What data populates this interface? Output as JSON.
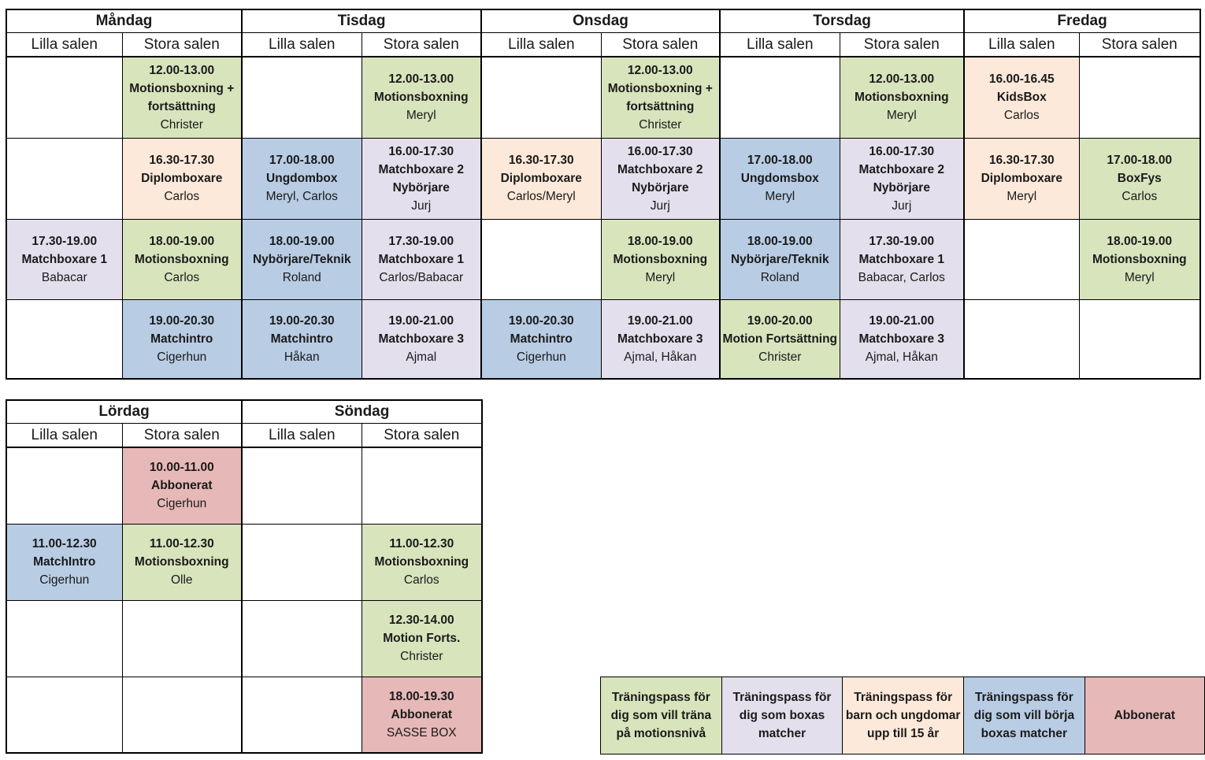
{
  "week": {
    "days": [
      "Måndag",
      "Tisdag",
      "Onsdag",
      "Torsdag",
      "Fredag"
    ],
    "halls": [
      "Lilla salen",
      "Stora salen"
    ],
    "rows": [
      [
        null,
        {
          "color": "green",
          "time": "12.00-13.00",
          "name": "Motionsboxning + fortsättning",
          "instructor": "Christer"
        },
        null,
        {
          "color": "green",
          "time": "12.00-13.00",
          "name": "Motionsboxning",
          "instructor": "Meryl"
        },
        null,
        {
          "color": "green",
          "time": "12.00-13.00",
          "name": "Motionsboxning + fortsättning",
          "instructor": "Christer"
        },
        null,
        {
          "color": "green",
          "time": "12.00-13.00",
          "name": "Motionsboxning",
          "instructor": "Meryl"
        },
        {
          "color": "peach",
          "time": "16.00-16.45",
          "name": "KidsBox",
          "instructor": "Carlos"
        },
        null
      ],
      [
        null,
        {
          "color": "peach",
          "time": "16.30-17.30",
          "name": "Diplomboxare",
          "instructor": "Carlos"
        },
        {
          "color": "blue",
          "time": "17.00-18.00",
          "name": "Ungdombox",
          "instructor": "Meryl, Carlos"
        },
        {
          "color": "purple",
          "time": "16.00-17.30",
          "name": "Matchboxare 2 Nybörjare",
          "instructor": "Jurj"
        },
        {
          "color": "peach",
          "time": "16.30-17.30",
          "name": "Diplomboxare",
          "instructor": "Carlos/Meryl"
        },
        {
          "color": "purple",
          "time": "16.00-17.30",
          "name": "Matchboxare 2 Nybörjare",
          "instructor": "Jurj"
        },
        {
          "color": "blue",
          "time": "17.00-18.00",
          "name": "Ungdomsbox",
          "instructor": "Meryl"
        },
        {
          "color": "purple",
          "time": "16.00-17.30",
          "name": "Matchboxare 2 Nybörjare",
          "instructor": "Jurj"
        },
        {
          "color": "peach",
          "time": "16.30-17.30",
          "name": "Diplomboxare",
          "instructor": "Meryl"
        },
        {
          "color": "green",
          "time": "17.00-18.00",
          "name": "BoxFys",
          "instructor": "Carlos"
        }
      ],
      [
        {
          "color": "purple",
          "time": "17.30-19.00",
          "name": "Matchboxare 1",
          "instructor": "Babacar"
        },
        {
          "color": "green",
          "time": "18.00-19.00",
          "name": "Motionsboxning",
          "instructor": "Carlos"
        },
        {
          "color": "blue",
          "time": "18.00-19.00",
          "name": "Nybörjare/Teknik",
          "instructor": "Roland"
        },
        {
          "color": "purple",
          "time": "17.30-19.00",
          "name": "Matchboxare 1",
          "instructor": "Carlos/Babacar"
        },
        null,
        {
          "color": "green",
          "time": "18.00-19.00",
          "name": "Motionsboxning",
          "instructor": "Meryl"
        },
        {
          "color": "blue",
          "time": "18.00-19.00",
          "name": "Nybörjare/Teknik",
          "instructor": "Roland"
        },
        {
          "color": "purple",
          "time": "17.30-19.00",
          "name": "Matchboxare 1",
          "instructor": "Babacar, Carlos"
        },
        null,
        {
          "color": "green",
          "time": "18.00-19.00",
          "name": "Motionsboxning",
          "instructor": "Meryl"
        }
      ],
      [
        null,
        {
          "color": "blue",
          "time": "19.00-20.30",
          "name": "Matchintro",
          "instructor": "Cigerhun"
        },
        {
          "color": "blue",
          "time": "19.00-20.30",
          "name": "Matchintro",
          "instructor": "Håkan"
        },
        {
          "color": "purple",
          "time": "19.00-21.00",
          "name": "Matchboxare 3",
          "instructor": "Ajmal"
        },
        {
          "color": "blue",
          "time": "19.00-20.30",
          "name": "Matchintro",
          "instructor": "Cigerhun"
        },
        {
          "color": "purple",
          "time": "19.00-21.00",
          "name": "Matchboxare 3",
          "instructor": "Ajmal, Håkan"
        },
        {
          "color": "green",
          "time": "19.00-20.00",
          "name": "Motion Fortsättning",
          "instructor": "Christer"
        },
        {
          "color": "purple",
          "time": "19.00-21.00",
          "name": "Matchboxare 3",
          "instructor": "Ajmal, Håkan"
        },
        null,
        null
      ]
    ]
  },
  "weekend": {
    "days": [
      "Lördag",
      "Söndag"
    ],
    "halls": [
      "Lilla salen",
      "Stora salen"
    ],
    "rows": [
      [
        null,
        {
          "color": "red",
          "time": "10.00-11.00",
          "name": "Abbonerat",
          "instructor": "Cigerhun"
        },
        null,
        null
      ],
      [
        {
          "color": "blue",
          "time": "11.00-12.30",
          "name": "MatchIntro",
          "instructor": "Cigerhun"
        },
        {
          "color": "green",
          "time": "11.00-12.30",
          "name": "Motionsboxning",
          "instructor": "Olle"
        },
        null,
        {
          "color": "green",
          "time": "11.00-12.30",
          "name": "Motionsboxning",
          "instructor": "Carlos"
        }
      ],
      [
        null,
        null,
        null,
        {
          "color": "green",
          "time": "12.30-14.00",
          "name": "Motion Forts.",
          "instructor": "Christer"
        }
      ],
      [
        null,
        null,
        null,
        {
          "color": "red",
          "time": "18.00-19.30",
          "name": "Abbonerat",
          "instructor": "SASSE BOX"
        }
      ]
    ]
  },
  "legend": [
    {
      "color": "green",
      "text": "Träningspass för dig som vill träna på motionsnivå"
    },
    {
      "color": "purple",
      "text": "Träningspass för dig som boxas matcher"
    },
    {
      "color": "peach",
      "text": "Träningspass för barn och ungdomar upp till 15 år"
    },
    {
      "color": "blue",
      "text": "Träningspass för dig som vill börja boxas matcher"
    },
    {
      "color": "red",
      "text": "Abbonerat"
    }
  ],
  "colors": {
    "green": "#d8e4bc",
    "purple": "#e4dfec",
    "peach": "#fde9d9",
    "blue": "#b8cce4",
    "red": "#e6b8b7"
  }
}
